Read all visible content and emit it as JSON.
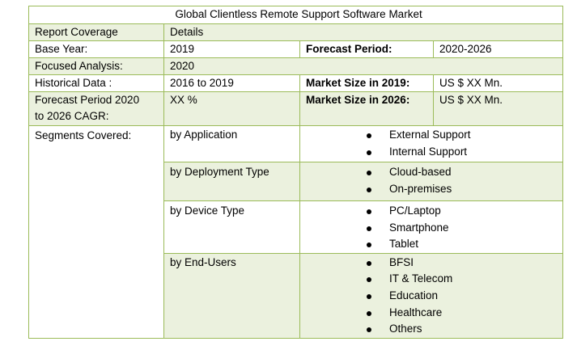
{
  "title": "Global Clientless Remote Support Software Market",
  "header": {
    "col1": "Report Coverage",
    "col2": "Details"
  },
  "base_year": {
    "label": "Base Year:",
    "value": "2019",
    "label2": "Forecast Period:",
    "value2": "2020-2026"
  },
  "focused": {
    "label": "Focused Analysis:",
    "value": "2020"
  },
  "historical": {
    "label": "Historical Data :",
    "value": "2016 to 2019",
    "label2": "Market Size in 2019:",
    "value2": "US $ XX Mn."
  },
  "cagr": {
    "label_line1": "Forecast Period 2020",
    "label_line2": "to 2026 CAGR:",
    "value": "XX %",
    "label2": "Market Size in 2026:",
    "value2": "US $ XX Mn."
  },
  "segments": {
    "label": "Segments Covered:",
    "groups": [
      {
        "name": "by Application",
        "items": [
          "External Support",
          "Internal Support"
        ]
      },
      {
        "name": "by Deployment Type",
        "items": [
          "Cloud-based",
          "On-premises"
        ]
      },
      {
        "name": "by Device Type",
        "items": [
          "PC/Laptop",
          "Smartphone",
          "Tablet"
        ]
      },
      {
        "name": "by End-Users",
        "items": [
          "BFSI",
          "IT & Telecom",
          "Education",
          "Healthcare",
          "Others"
        ]
      }
    ]
  }
}
